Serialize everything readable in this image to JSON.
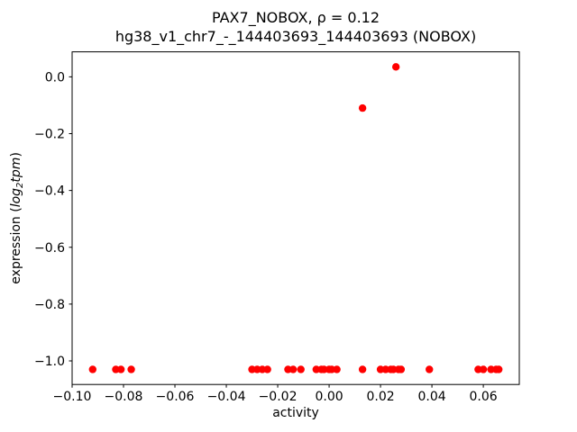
{
  "figure": {
    "background": "#ffffff"
  },
  "chart_data": {
    "type": "scatter",
    "title_line1": "PAX7_NOBOX, ρ = 0.12",
    "title_line2": "hg38_v1_chr7_-_144403693_144403693 (NOBOX)",
    "xlabel": "activity",
    "ylabel_plain": "expression (log2tpm)",
    "ylabel_rich": [
      {
        "t": "expression ("
      },
      {
        "t": "log",
        "italic": true
      },
      {
        "t": "2",
        "italic": true,
        "sub": true
      },
      {
        "t": "tpm",
        "italic": true
      },
      {
        "t": ")"
      }
    ],
    "marker_color": "#ff0000",
    "axis_color": "#000000",
    "xlim": [
      -0.1,
      0.074
    ],
    "ylim": [
      -1.083,
      0.088
    ],
    "xtick_values": [
      -0.1,
      -0.08,
      -0.06,
      -0.04,
      -0.02,
      0.0,
      0.02,
      0.04,
      0.06
    ],
    "xtick_labels": [
      "−0.10",
      "−0.08",
      "−0.06",
      "−0.04",
      "−0.02",
      "0.00",
      "0.02",
      "0.04",
      "0.06"
    ],
    "ytick_values": [
      0.0,
      -0.2,
      -0.4,
      -0.6,
      -0.8,
      -1.0
    ],
    "ytick_labels": [
      "0.0",
      "−0.2",
      "−0.4",
      "−0.6",
      "−0.8",
      "−1.0"
    ],
    "points": [
      [
        -0.092,
        -1.03
      ],
      [
        -0.083,
        -1.03
      ],
      [
        -0.081,
        -1.03
      ],
      [
        -0.077,
        -1.03
      ],
      [
        -0.03,
        -1.03
      ],
      [
        -0.028,
        -1.03
      ],
      [
        -0.026,
        -1.03
      ],
      [
        -0.024,
        -1.03
      ],
      [
        -0.016,
        -1.03
      ],
      [
        -0.014,
        -1.03
      ],
      [
        -0.011,
        -1.03
      ],
      [
        -0.005,
        -1.03
      ],
      [
        -0.003,
        -1.03
      ],
      [
        -0.002,
        -1.03
      ],
      [
        0.0,
        -1.03
      ],
      [
        0.001,
        -1.03
      ],
      [
        0.003,
        -1.03
      ],
      [
        0.013,
        -1.03
      ],
      [
        0.02,
        -1.03
      ],
      [
        0.022,
        -1.03
      ],
      [
        0.024,
        -1.03
      ],
      [
        0.025,
        -1.03
      ],
      [
        0.027,
        -1.03
      ],
      [
        0.028,
        -1.03
      ],
      [
        0.039,
        -1.03
      ],
      [
        0.058,
        -1.03
      ],
      [
        0.06,
        -1.03
      ],
      [
        0.063,
        -1.03
      ],
      [
        0.065,
        -1.03
      ],
      [
        0.066,
        -1.03
      ],
      [
        0.013,
        -0.11
      ],
      [
        0.026,
        0.035
      ]
    ]
  }
}
